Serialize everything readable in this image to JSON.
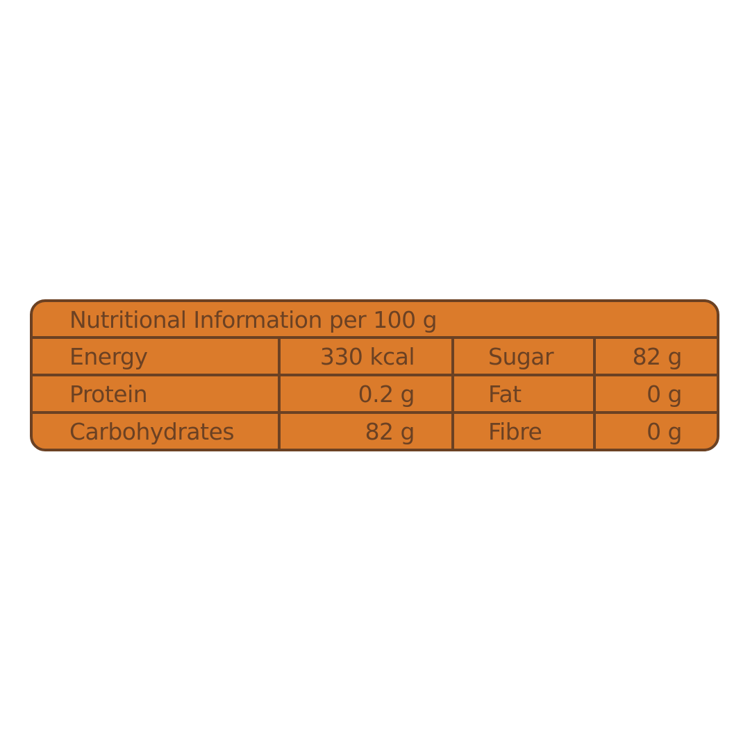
{
  "title": "Nutritional Information per 100 g",
  "colors": {
    "fill": "#DB7B2B",
    "border": "#6B4123",
    "text": "#6B4123"
  },
  "rows": [
    {
      "label": "Energy",
      "value": "330 kcal",
      "label2": "Sugar",
      "value2": "82 g"
    },
    {
      "label": "Protein",
      "value": "0.2 g",
      "label2": "Fat",
      "value2": "0 g"
    },
    {
      "label": "Carbohydrates",
      "value": "82 g",
      "label2": "Fibre",
      "value2": "0 g"
    }
  ]
}
